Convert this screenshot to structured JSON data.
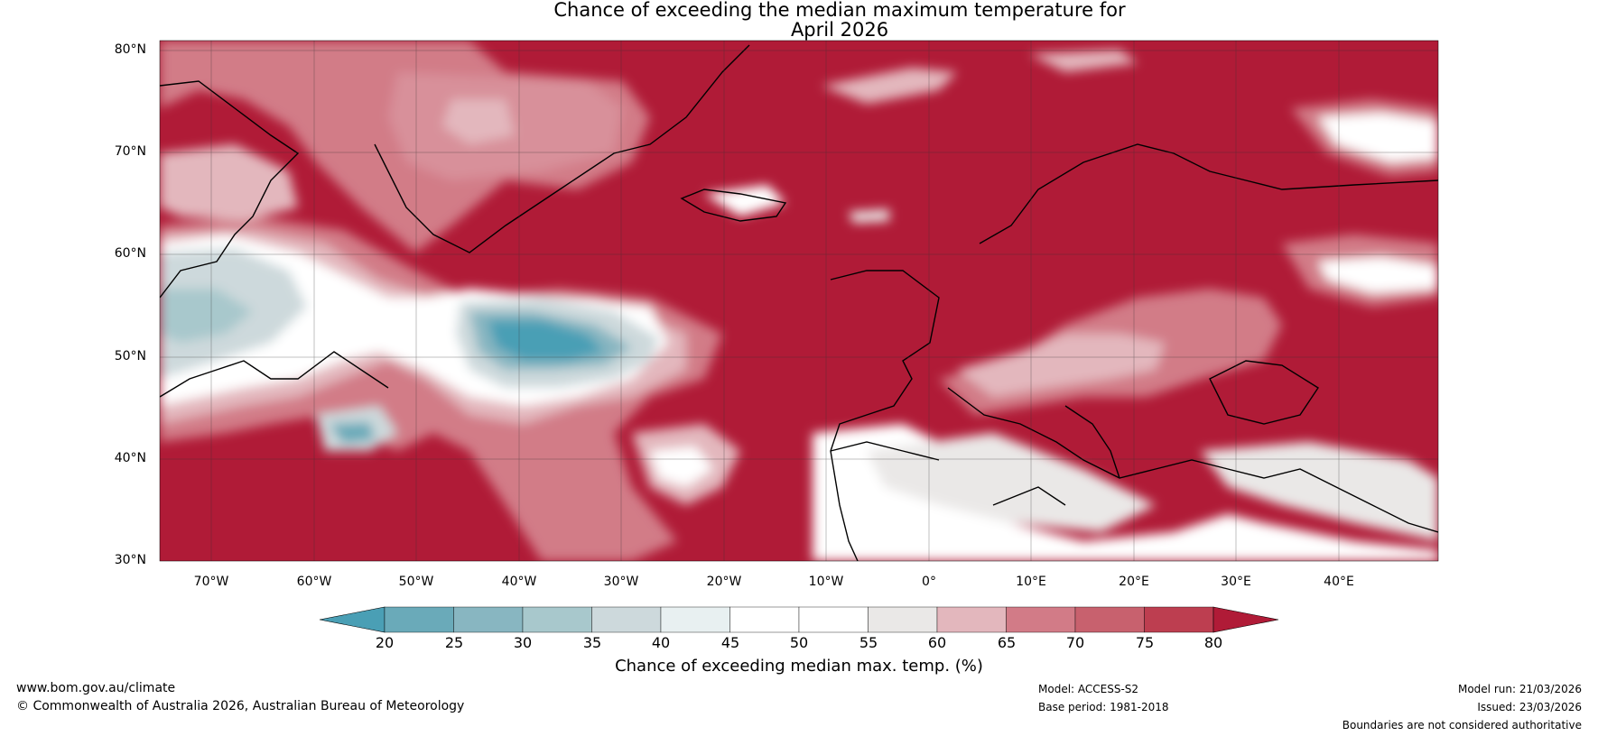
{
  "title": {
    "line1": "Chance of exceeding the median maximum temperature for",
    "line2": "April 2026"
  },
  "axes": {
    "lat_labels": [
      "80°N",
      "70°N",
      "60°N",
      "50°N",
      "40°N",
      "30°N"
    ],
    "lon_labels": [
      "70°W",
      "60°W",
      "50°W",
      "40°W",
      "30°W",
      "20°W",
      "10°W",
      "0°",
      "10°E",
      "20°E",
      "30°E",
      "40°E"
    ],
    "lat_range": [
      30,
      81
    ],
    "lon_range": [
      -75,
      50
    ]
  },
  "colorbar": {
    "ticks": [
      "20",
      "25",
      "30",
      "35",
      "40",
      "45",
      "50",
      "55",
      "60",
      "65",
      "70",
      "75",
      "80"
    ],
    "label": "Chance of exceeding median max. temp. (%)",
    "colors": [
      "#4a9fb5",
      "#6aaab9",
      "#88b6c1",
      "#a8c8cc",
      "#cdd9dc",
      "#e8f0f1",
      "#ffffff",
      "#ffffff",
      "#eae8e7",
      "#e3b7bd",
      "#d27b87",
      "#c8616e",
      "#bd3e50",
      "#b01b37"
    ]
  },
  "footer": {
    "website": "www.bom.gov.au/climate",
    "copyright": "© Commonwealth of Australia 2026, Australian Bureau of Meteorology",
    "model": "Model: ACCESS-S2",
    "base_period": "Base period: 1981-2018",
    "model_run": "Model run: 21/03/2026",
    "issued": "Issued: 23/03/2026",
    "disclaimer": "Boundaries are not considered authoritative"
  }
}
